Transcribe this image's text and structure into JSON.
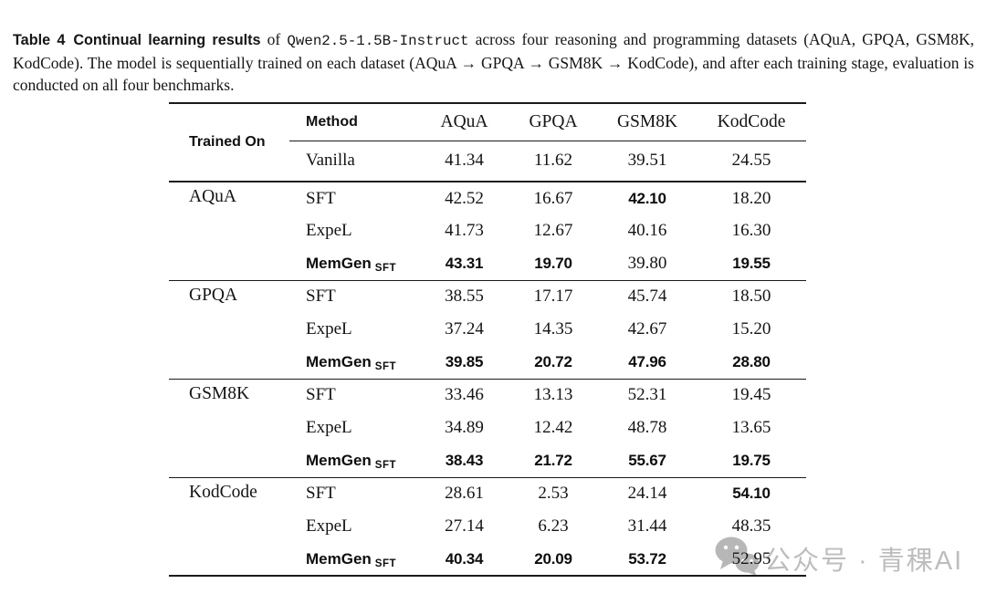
{
  "caption": {
    "label": "Table 4",
    "title": "Continual learning results",
    "connector": "of",
    "model": "Qwen2.5-1.5B-Instruct",
    "body": "across four reasoning and programming datasets (AQuA, GPQA, GSM8K, KodCode). The model is sequentially trained on each dataset (AQuA → GPQA → GSM8K → KodCode), and after each training stage, evaluation is conducted on all four benchmarks."
  },
  "table": {
    "header": {
      "trained_on": "Trained On",
      "method": "Method",
      "datasets": [
        "AQuA",
        "GPQA",
        "GSM8K",
        "KodCode"
      ]
    },
    "baseline": {
      "method": "Vanilla",
      "values": [
        "41.34",
        "11.62",
        "39.51",
        "24.55"
      ]
    },
    "groups": [
      {
        "trained_on": "AQuA",
        "rows": [
          {
            "method": "SFT",
            "method_bold": false,
            "subscript": "",
            "values": [
              "42.52",
              "16.67",
              "42.10",
              "18.20"
            ],
            "bold": [
              false,
              false,
              true,
              false
            ]
          },
          {
            "method": "ExpeL",
            "method_bold": false,
            "subscript": "",
            "values": [
              "41.73",
              "12.67",
              "40.16",
              "16.30"
            ],
            "bold": [
              false,
              false,
              false,
              false
            ]
          },
          {
            "method": "MemGen",
            "method_bold": true,
            "subscript": "SFT",
            "values": [
              "43.31",
              "19.70",
              "39.80",
              "19.55"
            ],
            "bold": [
              true,
              true,
              false,
              true
            ]
          }
        ]
      },
      {
        "trained_on": "GPQA",
        "rows": [
          {
            "method": "SFT",
            "method_bold": false,
            "subscript": "",
            "values": [
              "38.55",
              "17.17",
              "45.74",
              "18.50"
            ],
            "bold": [
              false,
              false,
              false,
              false
            ]
          },
          {
            "method": "ExpeL",
            "method_bold": false,
            "subscript": "",
            "values": [
              "37.24",
              "14.35",
              "42.67",
              "15.20"
            ],
            "bold": [
              false,
              false,
              false,
              false
            ]
          },
          {
            "method": "MemGen",
            "method_bold": true,
            "subscript": "SFT",
            "values": [
              "39.85",
              "20.72",
              "47.96",
              "28.80"
            ],
            "bold": [
              true,
              true,
              true,
              true
            ]
          }
        ]
      },
      {
        "trained_on": "GSM8K",
        "rows": [
          {
            "method": "SFT",
            "method_bold": false,
            "subscript": "",
            "values": [
              "33.46",
              "13.13",
              "52.31",
              "19.45"
            ],
            "bold": [
              false,
              false,
              false,
              false
            ]
          },
          {
            "method": "ExpeL",
            "method_bold": false,
            "subscript": "",
            "values": [
              "34.89",
              "12.42",
              "48.78",
              "13.65"
            ],
            "bold": [
              false,
              false,
              false,
              false
            ]
          },
          {
            "method": "MemGen",
            "method_bold": true,
            "subscript": "SFT",
            "values": [
              "38.43",
              "21.72",
              "55.67",
              "19.75"
            ],
            "bold": [
              true,
              true,
              true,
              true
            ]
          }
        ]
      },
      {
        "trained_on": "KodCode",
        "rows": [
          {
            "method": "SFT",
            "method_bold": false,
            "subscript": "",
            "values": [
              "28.61",
              "2.53",
              "24.14",
              "54.10"
            ],
            "bold": [
              false,
              false,
              false,
              true
            ]
          },
          {
            "method": "ExpeL",
            "method_bold": false,
            "subscript": "",
            "values": [
              "27.14",
              "6.23",
              "31.44",
              "48.35"
            ],
            "bold": [
              false,
              false,
              false,
              false
            ]
          },
          {
            "method": "MemGen",
            "method_bold": true,
            "subscript": "SFT",
            "values": [
              "40.34",
              "20.09",
              "53.72",
              "52.95"
            ],
            "bold": [
              true,
              true,
              true,
              false
            ]
          }
        ]
      }
    ]
  },
  "watermark": {
    "text": "公众号 · 青稞AI",
    "icon": "wechat-icon"
  },
  "colors": {
    "background": "#ffffff",
    "text": "#141414",
    "rule": "#1a1a1a",
    "watermark": "#bdbdbd"
  }
}
